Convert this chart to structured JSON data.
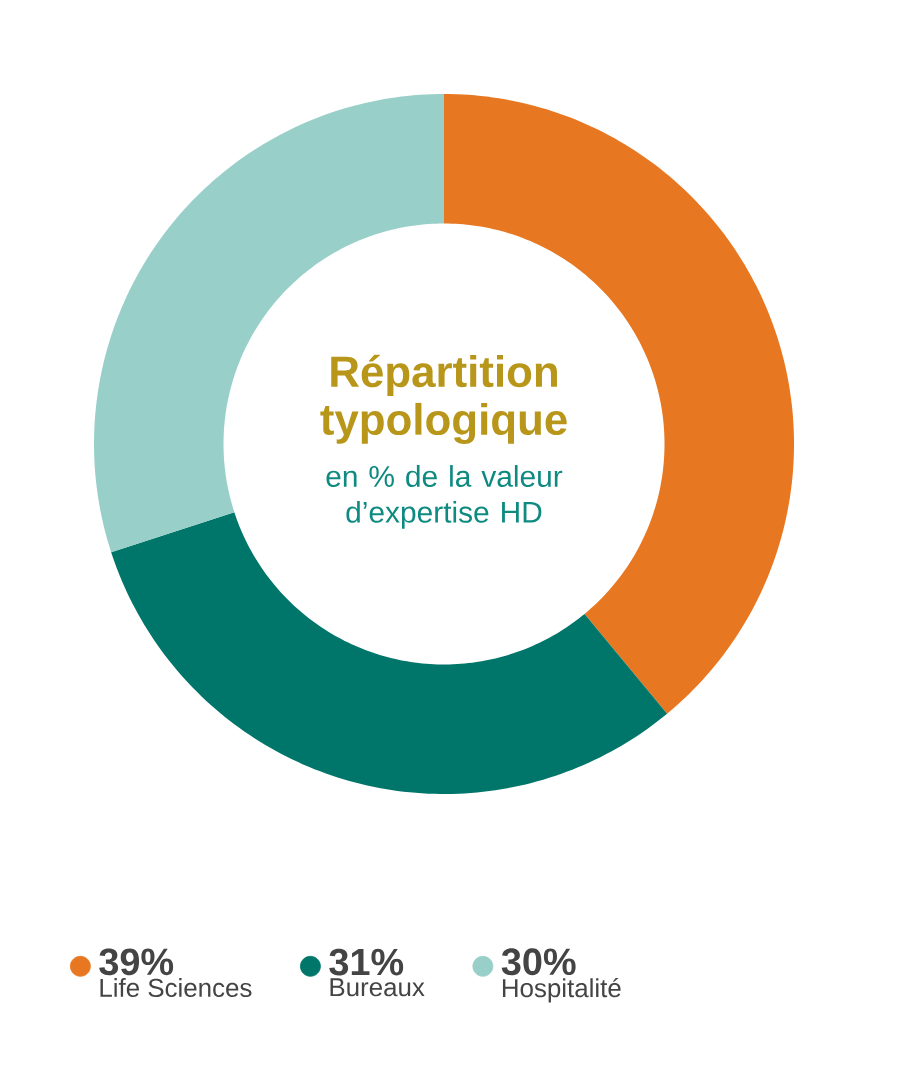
{
  "chart_data": {
    "type": "donut",
    "title": "Répartition typologique",
    "subtitle": "en % de la valeur d’expertise HD",
    "categories": [
      "Life Sciences",
      "Bureaux",
      "Hospitalité"
    ],
    "values": [
      39,
      31,
      30
    ],
    "value_labels": [
      "39%",
      "31%",
      "30%"
    ],
    "colors": [
      "#e87722",
      "#00766a",
      "#98cfc9"
    ],
    "legend": "bottom"
  }
}
